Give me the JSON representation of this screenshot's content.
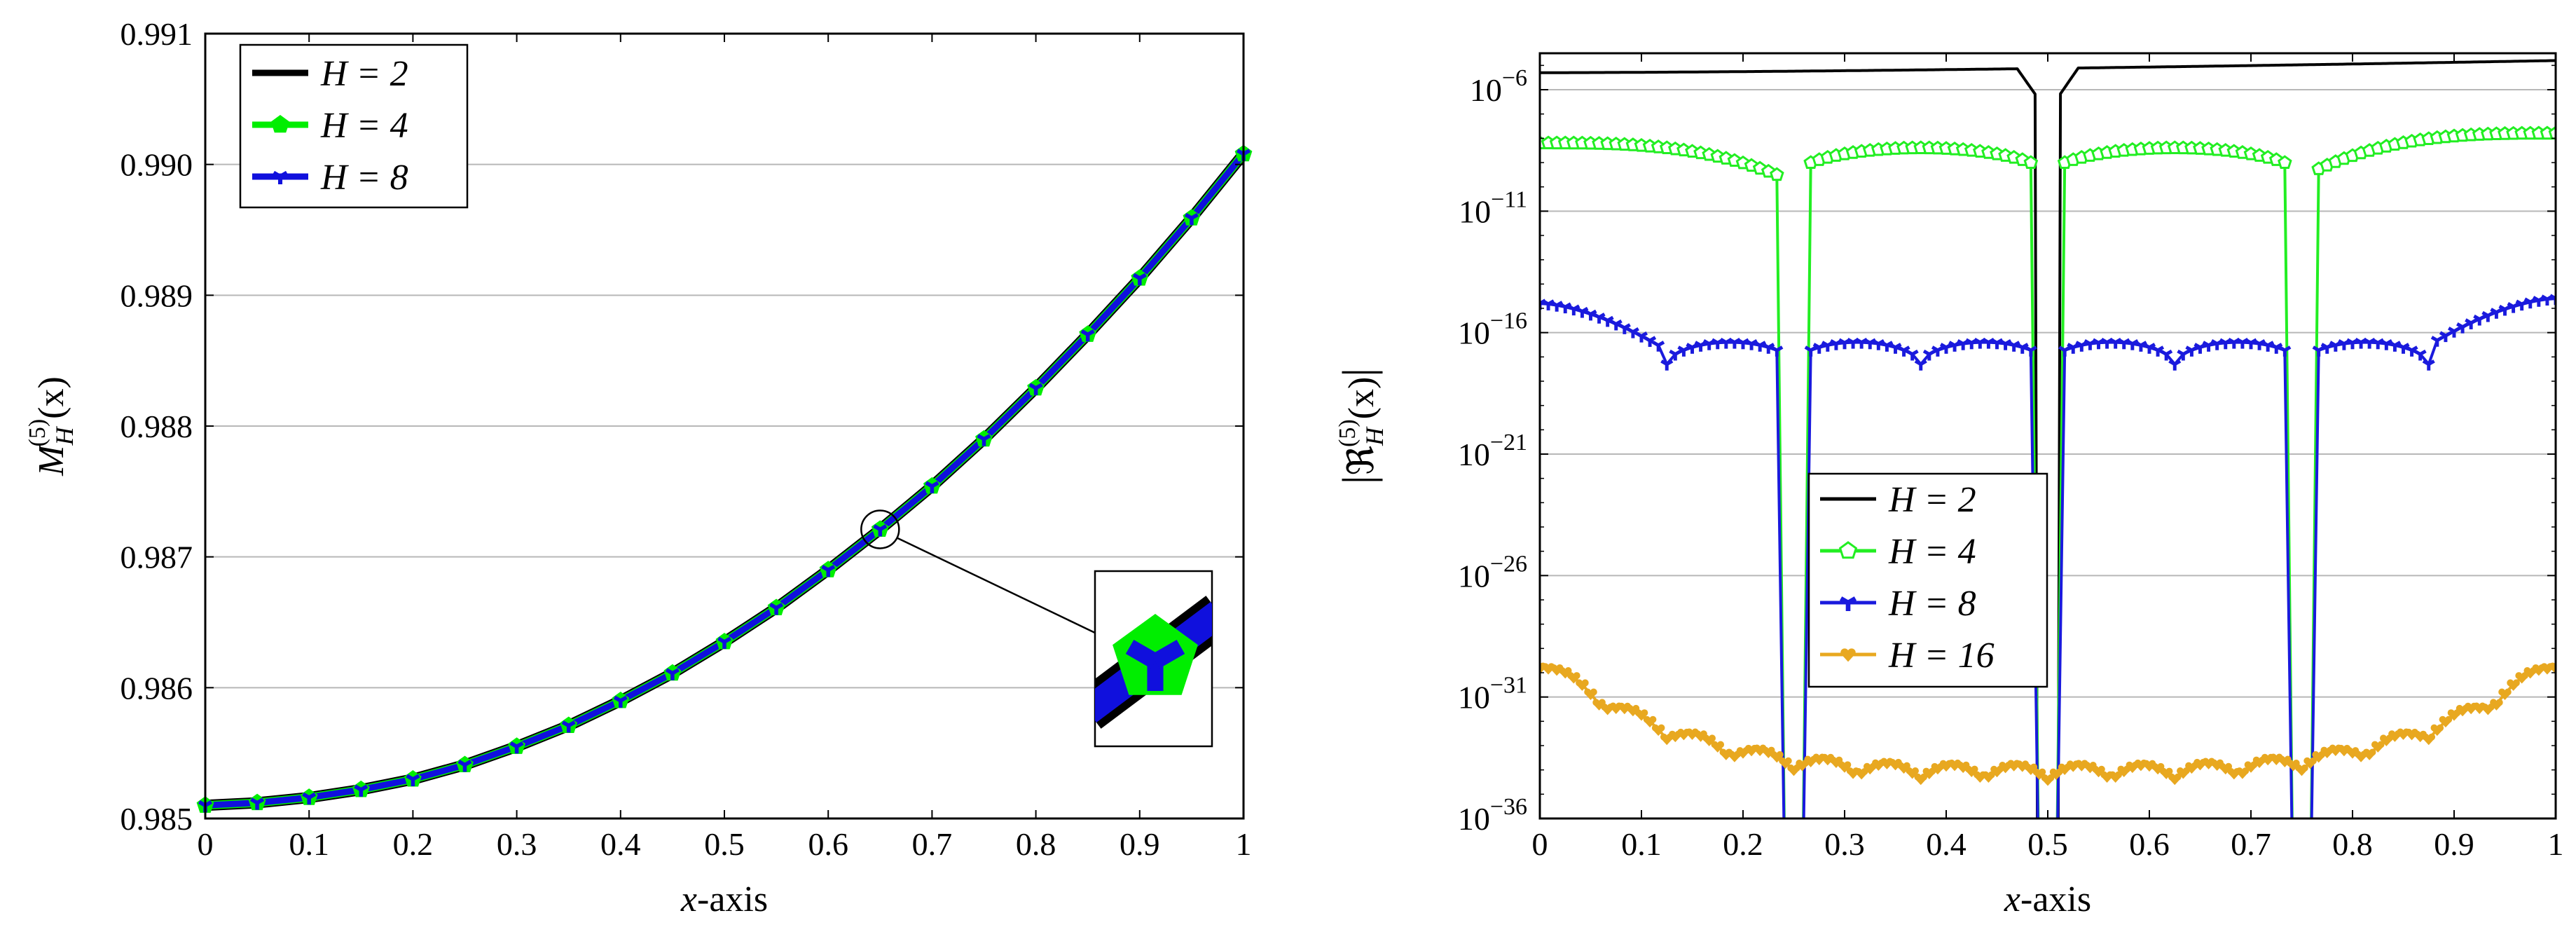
{
  "chart_data": [
    {
      "type": "line",
      "xlabel": "x-axis",
      "ylabel": "M_H^(5)(x)",
      "ylabel_parts": {
        "main": "M",
        "sub": "H",
        "sup": "(5)",
        "arg": "(x)"
      },
      "xlim": [
        0,
        1
      ],
      "ylim": [
        0.985,
        0.991
      ],
      "xticks": [
        "0",
        "0.1",
        "0.2",
        "0.3",
        "0.4",
        "0.5",
        "0.6",
        "0.7",
        "0.8",
        "0.9",
        "1"
      ],
      "yticks": [
        "0.985",
        "0.986",
        "0.987",
        "0.988",
        "0.989",
        "0.990",
        "0.991"
      ],
      "grid": "horizontal",
      "legend_position": "top-left",
      "x": [
        0,
        0.05,
        0.1,
        0.15,
        0.2,
        0.25,
        0.3,
        0.35,
        0.4,
        0.45,
        0.5,
        0.55,
        0.6,
        0.65,
        0.7,
        0.75,
        0.8,
        0.85,
        0.9,
        0.95,
        1
      ],
      "series": [
        {
          "name": "H = 2",
          "color": "#000000",
          "marker": "none",
          "values": [
            0.9851,
            0.98512,
            0.98516,
            0.98522,
            0.9853,
            0.98541,
            0.98555,
            0.98571,
            0.9859,
            0.98611,
            0.98635,
            0.98661,
            0.9869,
            0.98721,
            0.98754,
            0.9879,
            0.98829,
            0.9887,
            0.98913,
            0.98959,
            0.99008
          ]
        },
        {
          "name": "H = 4",
          "color": "#00ee00",
          "marker": "pentagon",
          "values": [
            0.9851,
            0.98512,
            0.98516,
            0.98522,
            0.9853,
            0.98541,
            0.98555,
            0.98571,
            0.9859,
            0.98611,
            0.98635,
            0.98661,
            0.9869,
            0.98721,
            0.98754,
            0.9879,
            0.98829,
            0.9887,
            0.98913,
            0.98959,
            0.99008
          ]
        },
        {
          "name": "H = 8",
          "color": "#1010dd",
          "marker": "tri",
          "values": [
            0.9851,
            0.98512,
            0.98516,
            0.98522,
            0.9853,
            0.98541,
            0.98555,
            0.98571,
            0.9859,
            0.98611,
            0.98635,
            0.98661,
            0.9869,
            0.98721,
            0.98754,
            0.9879,
            0.98829,
            0.9887,
            0.98913,
            0.98959,
            0.99008
          ]
        }
      ],
      "annotation": {
        "type": "zoom-inset",
        "x": 0.65,
        "y": 0.98721
      }
    },
    {
      "type": "line",
      "yscale": "log",
      "xlabel": "x-axis",
      "ylabel": "|R_H^(5)(x)|",
      "ylabel_parts": {
        "main": "ℜ",
        "sub": "H",
        "sup": "(5)",
        "arg": "(x)"
      },
      "xlim": [
        0,
        1
      ],
      "ylim_log10": [
        -36,
        -4.5
      ],
      "xticks": [
        "0",
        "0.1",
        "0.2",
        "0.3",
        "0.4",
        "0.5",
        "0.6",
        "0.7",
        "0.8",
        "0.9",
        "1"
      ],
      "yticks": [
        {
          "base": "10",
          "exp": "−6",
          "log10": -6
        },
        {
          "base": "10",
          "exp": "−11",
          "log10": -11
        },
        {
          "base": "10",
          "exp": "−16",
          "log10": -16
        },
        {
          "base": "10",
          "exp": "−21",
          "log10": -21
        },
        {
          "base": "10",
          "exp": "−26",
          "log10": -26
        },
        {
          "base": "10",
          "exp": "−31",
          "log10": -31
        },
        {
          "base": "10",
          "exp": "−36",
          "log10": -36
        }
      ],
      "grid": "horizontal",
      "legend_position": "lower-left-center",
      "series": [
        {
          "name": "H = 2",
          "color": "#000000",
          "marker": "none",
          "profile": {
            "kind": "node-dips",
            "start": -5.3,
            "end": -4.8,
            "nodes": [
              0.5
            ],
            "depth": 0
          }
        },
        {
          "name": "H = 4",
          "color": "#22ee22",
          "marker": "pentagon-open",
          "profile": {
            "kind": "node-dips",
            "start": -8.2,
            "end": -7.8,
            "mid_level": -8.8,
            "edge_dip_level": -9.8,
            "nodes": [
              0.25,
              0.5,
              0.75
            ]
          }
        },
        {
          "name": "H = 8",
          "color": "#1a1add",
          "marker": "tri",
          "profile": {
            "kind": "node-dips",
            "start": -14.8,
            "end": -14.6,
            "mid_level": -17.4,
            "bump_dips": [
              0.125,
              0.375,
              0.625,
              0.875
            ],
            "nodes": [
              0.25,
              0.5,
              0.75
            ]
          }
        },
        {
          "name": "H = 16",
          "color": "#e8a820",
          "marker": "heart",
          "profile": {
            "kind": "bumpy",
            "start": -29.8,
            "end": -29.8,
            "floor": -34.5
          }
        }
      ]
    }
  ]
}
